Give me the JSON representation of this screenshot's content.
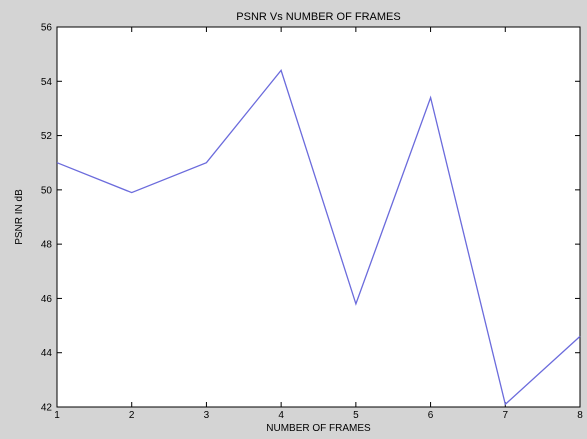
{
  "chart_data": {
    "type": "line",
    "title": "PSNR Vs NUMBER OF FRAMES",
    "xlabel": "NUMBER OF FRAMES",
    "ylabel": "PSNR IN dB",
    "xlim": [
      1,
      8
    ],
    "ylim": [
      42,
      56
    ],
    "xticks": [
      1,
      2,
      3,
      4,
      5,
      6,
      7,
      8
    ],
    "yticks": [
      42,
      44,
      46,
      48,
      50,
      52,
      54,
      56
    ],
    "grid": false,
    "series": [
      {
        "x": [
          1,
          2,
          3,
          4,
          5,
          6,
          7,
          8
        ],
        "y": [
          51.0,
          49.9,
          51.0,
          54.4,
          45.8,
          53.4,
          42.1,
          44.6
        ],
        "color": "#6b6bdc"
      }
    ]
  }
}
